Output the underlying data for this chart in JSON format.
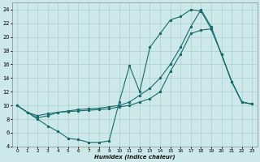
{
  "xlabel": "Humidex (Indice chaleur)",
  "bg_color": "#cce8e8",
  "grid_color": "#aacfcf",
  "line_color": "#1a6b6b",
  "xlim": [
    -0.5,
    23.5
  ],
  "ylim": [
    4,
    25
  ],
  "xticks": [
    0,
    1,
    2,
    3,
    4,
    5,
    6,
    7,
    8,
    9,
    10,
    11,
    12,
    13,
    14,
    15,
    16,
    17,
    18,
    19,
    20,
    21,
    22,
    23
  ],
  "yticks": [
    4,
    6,
    8,
    10,
    12,
    14,
    16,
    18,
    20,
    22,
    24
  ],
  "curve1_x": [
    0,
    1,
    2,
    3,
    4,
    5,
    6,
    7,
    8,
    9,
    10,
    11,
    12,
    13,
    14,
    15,
    16,
    17,
    18,
    19,
    20,
    21,
    22,
    23
  ],
  "curve1_y": [
    10,
    9,
    8,
    7,
    6.2,
    5.2,
    5.0,
    4.6,
    4.6,
    4.8,
    10.5,
    15.8,
    12.0,
    18.5,
    20.5,
    22.5,
    23.0,
    24.0,
    23.8,
    21.2,
    17.5,
    13.5,
    10.5,
    10.2
  ],
  "curve2_x": [
    0,
    1,
    2,
    3,
    4,
    5,
    6,
    7,
    8,
    9,
    10,
    11,
    12,
    13,
    14,
    15,
    16,
    17,
    18,
    19,
    20,
    21,
    22,
    23
  ],
  "curve2_y": [
    10,
    9,
    8.2,
    8.5,
    9.0,
    9.1,
    9.2,
    9.3,
    9.4,
    9.5,
    9.8,
    10.0,
    10.5,
    11.0,
    12.0,
    15.0,
    17.5,
    20.5,
    21.0,
    21.2,
    17.5,
    13.5,
    10.5,
    10.2
  ],
  "curve3_x": [
    0,
    1,
    2,
    3,
    4,
    5,
    6,
    7,
    8,
    9,
    10,
    11,
    12,
    13,
    14,
    15,
    16,
    17,
    18,
    19,
    20,
    21,
    22,
    23
  ],
  "curve3_y": [
    10,
    9.0,
    8.5,
    8.8,
    9.0,
    9.2,
    9.4,
    9.5,
    9.6,
    9.8,
    10.0,
    10.5,
    11.5,
    12.5,
    14.0,
    16.0,
    18.5,
    21.5,
    24.0,
    21.5,
    17.5,
    13.5,
    10.5,
    10.2
  ]
}
